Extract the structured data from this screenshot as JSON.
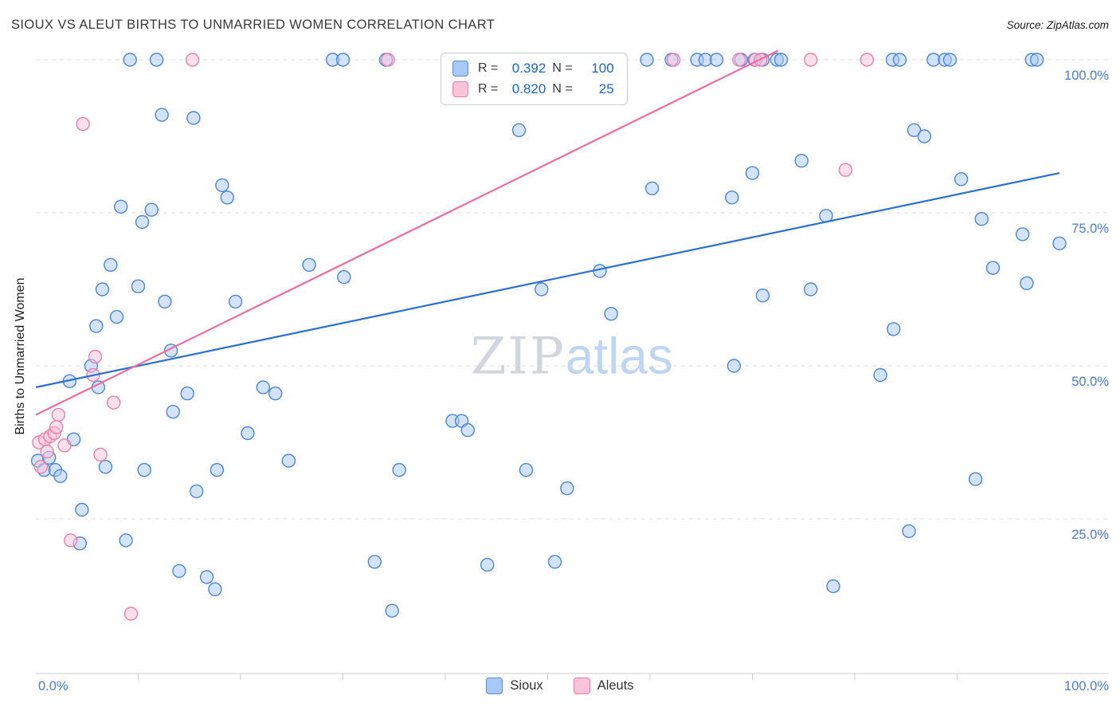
{
  "header": {
    "title": "SIOUX VS ALEUT BIRTHS TO UNMARRIED WOMEN CORRELATION CHART",
    "source": "Source: ZipAtlas.com"
  },
  "axes": {
    "y_label": "Births to Unmarried Women",
    "y_ticks": [
      {
        "value": 100,
        "label": "100.0%"
      },
      {
        "value": 75,
        "label": "75.0%"
      },
      {
        "value": 50,
        "label": "50.0%"
      },
      {
        "value": 25,
        "label": "25.0%"
      }
    ],
    "x_start_label": "0.0%",
    "x_end_label": "100.0%"
  },
  "legend_box": {
    "rows": [
      {
        "series": "Sioux",
        "r_label": "R =",
        "r_value": "0.392",
        "n_label": "N =",
        "n_value": "100"
      },
      {
        "series": "Aleuts",
        "r_label": "R =",
        "r_value": "0.820",
        "n_label": "N =",
        "n_value": "25"
      }
    ]
  },
  "bottom_legend": [
    {
      "label": "Sioux"
    },
    {
      "label": "Aleuts"
    }
  ],
  "watermark": {
    "zip": "ZIP",
    "atlas": "atlas"
  },
  "colors": {
    "blue_fill": "#a8c8f8",
    "blue_stroke": "#4e86d8",
    "blue_line": "#2a6fd4",
    "pink_fill": "#f9c3d8",
    "pink_stroke": "#ee7fac",
    "pink_line": "#ee6d9f",
    "tick_label": "#4a7dd6",
    "grid": "#dddddd",
    "axis": "#cccccc"
  },
  "chart_data": {
    "type": "scatter",
    "title": "SIOUX VS ALEUT BIRTHS TO UNMARRIED WOMEN CORRELATION CHART",
    "xlabel": "",
    "ylabel": "Births to Unmarried Women",
    "xlim": [
      0,
      100
    ],
    "ylim": [
      0,
      100
    ],
    "grid": "horizontal-dashed",
    "legend_position": "bottom-center",
    "series": [
      {
        "name": "Sioux",
        "R": 0.392,
        "N": 100,
        "fill": "#a8c8f8",
        "stroke": "#4e86d8",
        "points": [
          [
            9.2,
            100
          ],
          [
            11.8,
            100
          ],
          [
            29.0,
            100
          ],
          [
            30.0,
            100
          ],
          [
            34.2,
            100
          ],
          [
            43.5,
            100
          ],
          [
            59.7,
            100
          ],
          [
            62.1,
            100
          ],
          [
            64.6,
            100
          ],
          [
            65.4,
            100
          ],
          [
            66.5,
            100
          ],
          [
            68.9,
            100
          ],
          [
            70.2,
            100
          ],
          [
            71.0,
            100
          ],
          [
            72.4,
            100
          ],
          [
            72.8,
            100
          ],
          [
            83.7,
            100
          ],
          [
            84.4,
            100
          ],
          [
            87.7,
            100
          ],
          [
            88.8,
            100
          ],
          [
            89.3,
            100
          ],
          [
            97.3,
            100
          ],
          [
            97.8,
            100
          ],
          [
            12.3,
            91.0
          ],
          [
            15.4,
            90.5
          ],
          [
            47.2,
            88.5
          ],
          [
            85.8,
            88.5
          ],
          [
            86.8,
            87.5
          ],
          [
            74.8,
            83.5
          ],
          [
            70.0,
            81.5
          ],
          [
            90.4,
            80.5
          ],
          [
            18.2,
            79.5
          ],
          [
            60.2,
            79.0
          ],
          [
            18.7,
            77.5
          ],
          [
            68.0,
            77.5
          ],
          [
            8.3,
            76.0
          ],
          [
            11.3,
            75.5
          ],
          [
            77.2,
            74.5
          ],
          [
            92.4,
            74.0
          ],
          [
            10.4,
            73.5
          ],
          [
            96.4,
            71.5
          ],
          [
            100.0,
            70.0
          ],
          [
            7.3,
            66.5
          ],
          [
            26.7,
            66.5
          ],
          [
            93.5,
            66.0
          ],
          [
            55.1,
            65.5
          ],
          [
            30.1,
            64.5
          ],
          [
            96.8,
            63.5
          ],
          [
            6.5,
            62.5
          ],
          [
            10.0,
            63.0
          ],
          [
            49.4,
            62.5
          ],
          [
            75.7,
            62.5
          ],
          [
            71.0,
            61.5
          ],
          [
            12.6,
            60.5
          ],
          [
            19.5,
            60.5
          ],
          [
            56.2,
            58.5
          ],
          [
            7.9,
            58.0
          ],
          [
            5.9,
            56.5
          ],
          [
            83.8,
            56.0
          ],
          [
            13.2,
            52.5
          ],
          [
            68.2,
            50.0
          ],
          [
            82.5,
            48.5
          ],
          [
            3.3,
            47.5
          ],
          [
            5.4,
            50.0
          ],
          [
            14.8,
            45.5
          ],
          [
            22.2,
            46.5
          ],
          [
            23.4,
            45.5
          ],
          [
            6.1,
            46.5
          ],
          [
            13.4,
            42.5
          ],
          [
            40.7,
            41.0
          ],
          [
            41.6,
            41.0
          ],
          [
            42.2,
            39.5
          ],
          [
            20.7,
            39.0
          ],
          [
            3.7,
            38.0
          ],
          [
            0.2,
            34.5
          ],
          [
            0.8,
            33.0
          ],
          [
            1.3,
            35.0
          ],
          [
            1.9,
            33.0
          ],
          [
            2.4,
            32.0
          ],
          [
            6.8,
            33.5
          ],
          [
            10.6,
            33.0
          ],
          [
            17.7,
            33.0
          ],
          [
            24.7,
            34.5
          ],
          [
            35.5,
            33.0
          ],
          [
            47.9,
            33.0
          ],
          [
            51.9,
            30.0
          ],
          [
            15.7,
            29.5
          ],
          [
            91.8,
            31.5
          ],
          [
            4.5,
            26.5
          ],
          [
            4.3,
            21.0
          ],
          [
            8.8,
            21.5
          ],
          [
            85.3,
            23.0
          ],
          [
            14.0,
            16.5
          ],
          [
            16.7,
            15.5
          ],
          [
            17.5,
            13.5
          ],
          [
            33.1,
            18.0
          ],
          [
            44.1,
            17.5
          ],
          [
            50.7,
            18.0
          ],
          [
            77.9,
            14.0
          ],
          [
            34.8,
            10.0
          ]
        ]
      },
      {
        "name": "Aleuts",
        "R": 0.82,
        "N": 25,
        "fill": "#f9c3d8",
        "stroke": "#ee7fac",
        "points": [
          [
            15.3,
            100
          ],
          [
            34.4,
            100
          ],
          [
            62.3,
            100
          ],
          [
            68.7,
            100
          ],
          [
            70.3,
            100
          ],
          [
            70.8,
            100
          ],
          [
            75.7,
            100
          ],
          [
            81.2,
            100
          ],
          [
            4.6,
            89.5
          ],
          [
            79.1,
            82.0
          ],
          [
            5.6,
            48.5
          ],
          [
            5.8,
            51.5
          ],
          [
            7.6,
            44.0
          ],
          [
            0.3,
            37.5
          ],
          [
            0.9,
            38.0
          ],
          [
            1.4,
            38.5
          ],
          [
            1.8,
            39.0
          ],
          [
            2.2,
            42.0
          ],
          [
            2.8,
            37.0
          ],
          [
            1.1,
            36.0
          ],
          [
            6.3,
            35.5
          ],
          [
            2.0,
            40.0
          ],
          [
            0.5,
            33.5
          ],
          [
            3.4,
            21.5
          ],
          [
            9.3,
            9.5
          ]
        ]
      }
    ],
    "trend_lines": [
      {
        "name": "Sioux",
        "color": "#2a6fd4",
        "start": [
          0,
          46.5
        ],
        "end": [
          100,
          81.5
        ]
      },
      {
        "name": "Aleuts",
        "color": "#ee6d9f",
        "start": [
          0,
          42.0
        ],
        "end": [
          72.5,
          101.5
        ]
      }
    ]
  }
}
